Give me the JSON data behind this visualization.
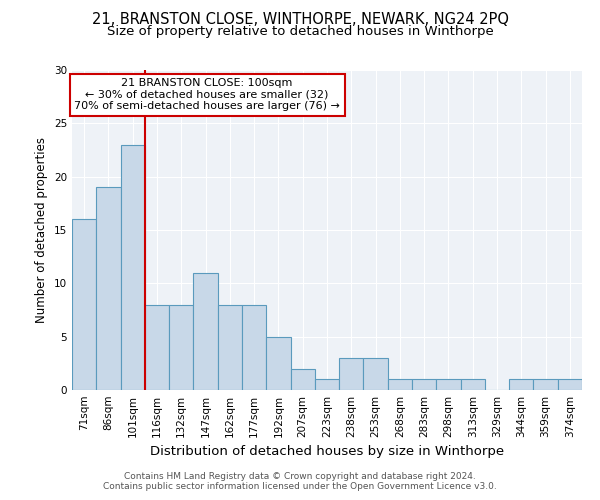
{
  "title1": "21, BRANSTON CLOSE, WINTHORPE, NEWARK, NG24 2PQ",
  "title2": "Size of property relative to detached houses in Winthorpe",
  "xlabel": "Distribution of detached houses by size in Winthorpe",
  "ylabel": "Number of detached properties",
  "categories": [
    "71sqm",
    "86sqm",
    "101sqm",
    "116sqm",
    "132sqm",
    "147sqm",
    "162sqm",
    "177sqm",
    "192sqm",
    "207sqm",
    "223sqm",
    "238sqm",
    "253sqm",
    "268sqm",
    "283sqm",
    "298sqm",
    "313sqm",
    "329sqm",
    "344sqm",
    "359sqm",
    "374sqm"
  ],
  "values": [
    16,
    19,
    23,
    8,
    8,
    11,
    8,
    8,
    5,
    2,
    1,
    3,
    3,
    1,
    1,
    1,
    1,
    0,
    1,
    1,
    1
  ],
  "bar_color": "#c8d8e8",
  "bar_edge_color": "#5a9abd",
  "red_line_index": 2,
  "annotation_text": "21 BRANSTON CLOSE: 100sqm\n← 30% of detached houses are smaller (32)\n70% of semi-detached houses are larger (76) →",
  "annotation_box_color": "#ffffff",
  "annotation_box_edge": "#cc0000",
  "footer1": "Contains HM Land Registry data © Crown copyright and database right 2024.",
  "footer2": "Contains public sector information licensed under the Open Government Licence v3.0.",
  "ylim": [
    0,
    30
  ],
  "yticks": [
    0,
    5,
    10,
    15,
    20,
    25,
    30
  ],
  "bg_color": "#eef2f7",
  "grid_color": "#ffffff",
  "title1_fontsize": 10.5,
  "title2_fontsize": 9.5,
  "xlabel_fontsize": 9.5,
  "ylabel_fontsize": 8.5,
  "tick_fontsize": 7.5,
  "footer_fontsize": 6.5,
  "annotation_fontsize": 8.0
}
